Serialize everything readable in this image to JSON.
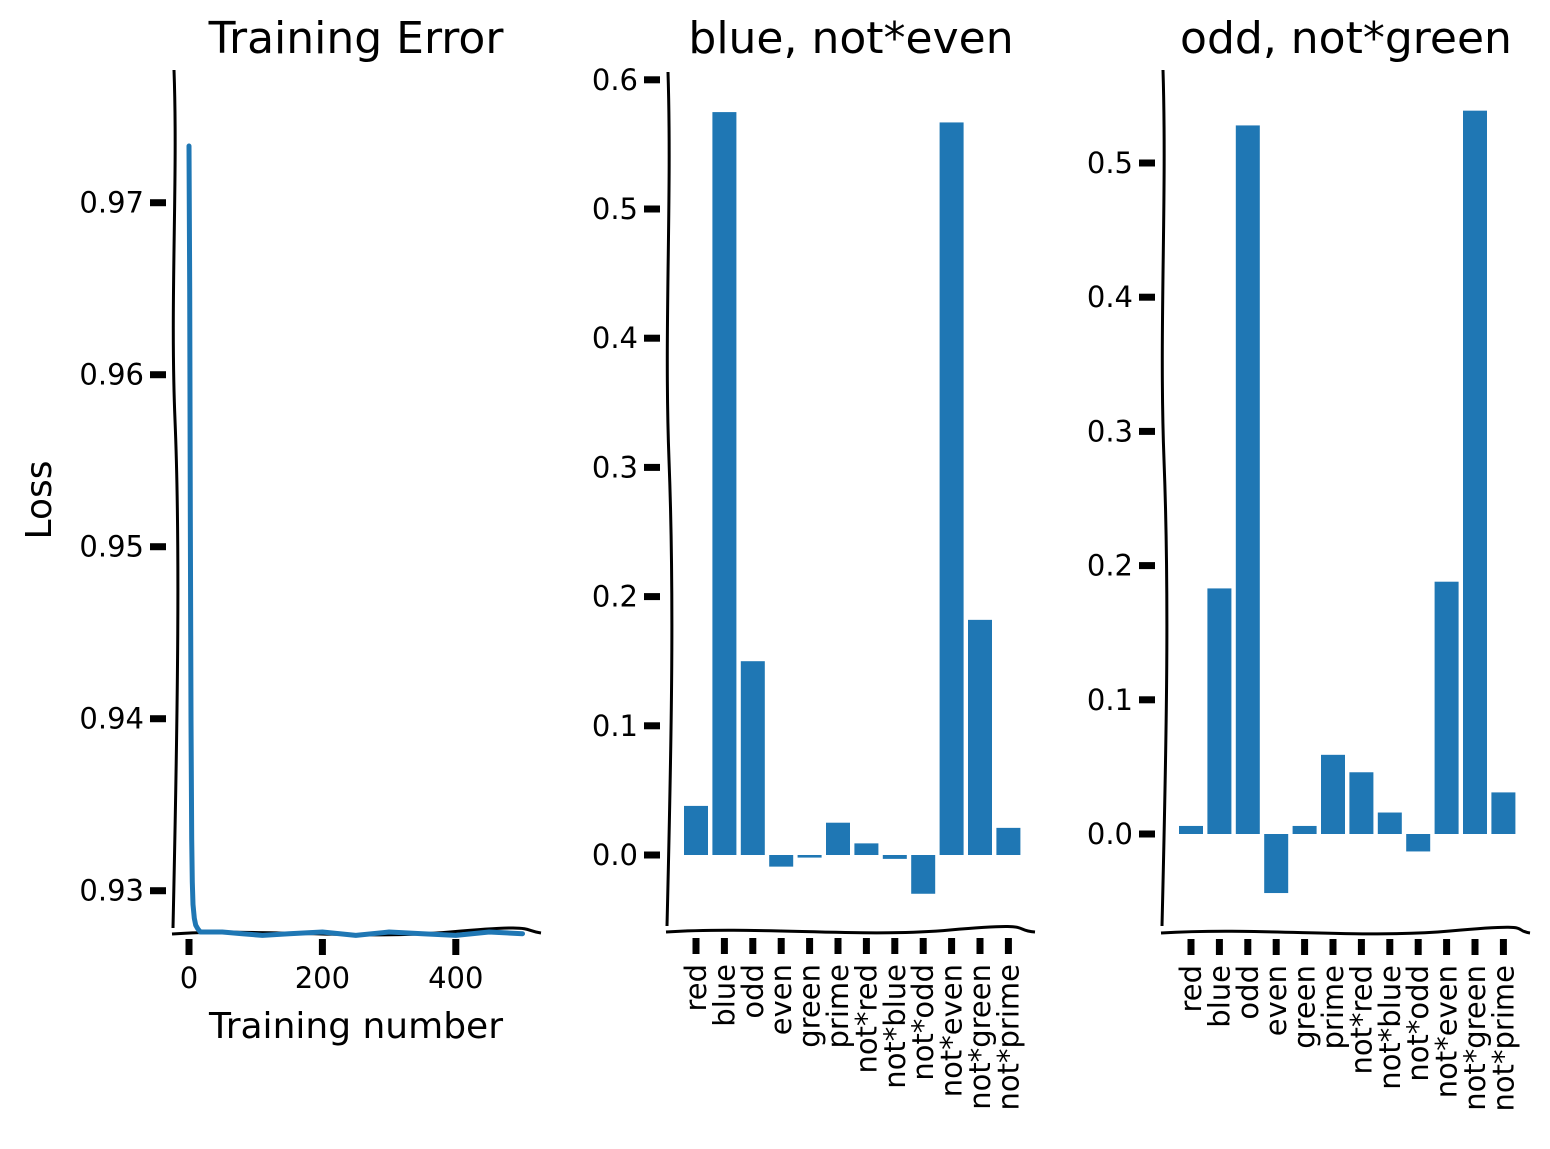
{
  "colors": {
    "series": "#1f77b4",
    "axis": "#000000"
  },
  "chart_data": [
    {
      "type": "line",
      "title": "Training Error",
      "xlabel": "Training number",
      "ylabel": "Loss",
      "xlim": [
        -25,
        525
      ],
      "ylim": [
        0.9255,
        0.9755
      ],
      "xticks": [
        0,
        200,
        400
      ],
      "xtick_labels": [
        "0",
        "200",
        "400"
      ],
      "yticks": [
        0.93,
        0.94,
        0.95,
        0.96,
        0.97
      ],
      "ytick_labels": [
        "0.93",
        "0.94",
        "0.95",
        "0.96",
        "0.97"
      ],
      "grid": false,
      "series": [
        {
          "x": [
            0,
            1,
            2,
            3,
            4,
            5,
            6,
            8,
            10,
            13,
            17,
            22,
            30,
            50,
            80,
            110,
            150,
            200,
            250,
            300,
            350,
            400,
            450,
            500
          ],
          "y": [
            0.9733,
            0.965,
            0.952,
            0.94,
            0.933,
            0.9305,
            0.9292,
            0.9284,
            0.928,
            0.9278,
            0.9276,
            0.9276,
            0.9276,
            0.9276,
            0.9275,
            0.9274,
            0.9275,
            0.9276,
            0.9274,
            0.9276,
            0.9275,
            0.9274,
            0.9276,
            0.9275
          ]
        }
      ]
    },
    {
      "type": "bar",
      "title": "blue, not*even",
      "xlabel": "",
      "ylabel": "",
      "categories": [
        "red",
        "blue",
        "odd",
        "even",
        "green",
        "prime",
        "not*red",
        "not*blue",
        "not*odd",
        "not*even",
        "not*green",
        "not*prime"
      ],
      "values": [
        0.038,
        0.575,
        0.15,
        -0.009,
        -0.002,
        0.025,
        0.009,
        -0.003,
        -0.03,
        0.567,
        0.182,
        0.021
      ],
      "ylim": [
        -0.057,
        0.605
      ],
      "yticks": [
        0.0,
        0.1,
        0.2,
        0.3,
        0.4,
        0.5,
        0.6
      ],
      "ytick_labels": [
        "0.0",
        "0.1",
        "0.2",
        "0.3",
        "0.4",
        "0.5",
        "0.6"
      ],
      "grid": false
    },
    {
      "type": "bar",
      "title": "odd, not*green",
      "xlabel": "",
      "ylabel": "",
      "categories": [
        "red",
        "blue",
        "odd",
        "even",
        "green",
        "prime",
        "not*red",
        "not*blue",
        "not*odd",
        "not*even",
        "not*green",
        "not*prime"
      ],
      "values": [
        0.006,
        0.183,
        0.528,
        -0.044,
        0.006,
        0.059,
        0.046,
        0.016,
        -0.013,
        0.188,
        0.539,
        0.031
      ],
      "ylim": [
        -0.074,
        0.57
      ],
      "yticks": [
        0.0,
        0.1,
        0.2,
        0.3,
        0.4,
        0.5
      ],
      "ytick_labels": [
        "0.0",
        "0.1",
        "0.2",
        "0.3",
        "0.4",
        "0.5"
      ],
      "grid": false
    }
  ]
}
